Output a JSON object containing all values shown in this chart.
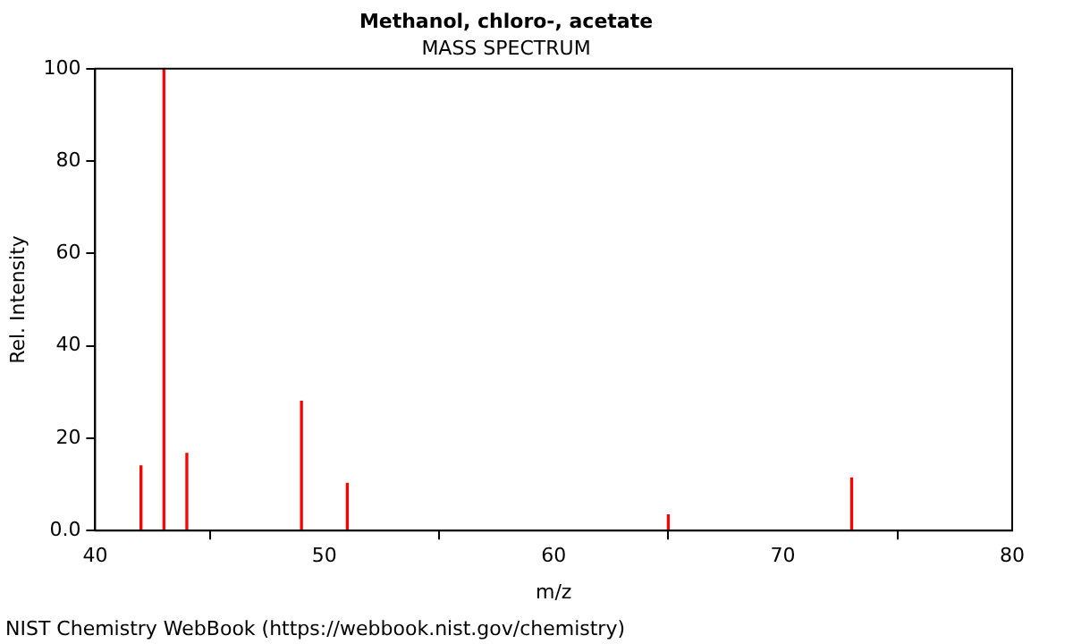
{
  "chart_data": {
    "type": "bar",
    "title": "Methanol, chloro-, acetate",
    "subtitle": "MASS SPECTRUM",
    "xlabel": "m/z",
    "ylabel": "Rel. Intensity",
    "x": [
      42,
      43,
      44,
      49,
      51,
      65,
      73
    ],
    "values": [
      14,
      100,
      16.7,
      28,
      10.2,
      3.4,
      11.4
    ],
    "color": "#ff0000",
    "xlim": [
      40,
      80
    ],
    "xticks": [
      40,
      50,
      60,
      70,
      80
    ],
    "ylim": [
      0,
      100
    ],
    "yticks": [
      {
        "value": 0,
        "label": "0.0"
      },
      20,
      40,
      60,
      80,
      100
    ],
    "grid": false,
    "legend": false,
    "annotations": [
      "NIST Chemistry WebBook (https://webbook.nist.gov/chemistry)"
    ]
  }
}
